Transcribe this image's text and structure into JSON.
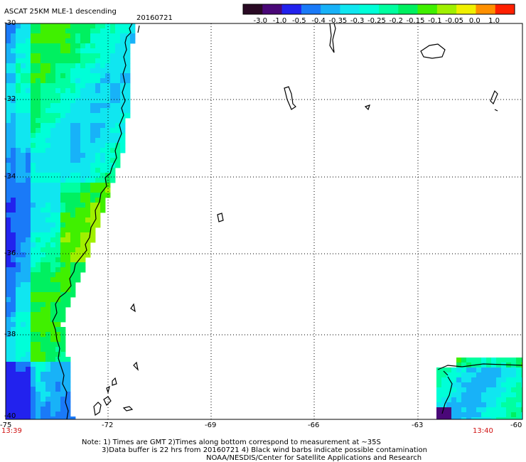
{
  "header": {
    "title": "ASCAT 25KM MLE-1 descending",
    "date": "20160721"
  },
  "colorbar": {
    "ticks": [
      "-3.0",
      "-1.0",
      "-0.5",
      "-0.4",
      "-0.35",
      "-0.3",
      "-0.25",
      "-0.2",
      "-0.15",
      "-0.1",
      "-0.05",
      "0.0",
      "1.0"
    ],
    "colors": [
      "#2a0a24",
      "#4a0878",
      "#2222ee",
      "#1a7af8",
      "#18b2f8",
      "#10e6f0",
      "#00ffd8",
      "#00ffa0",
      "#00f060",
      "#40f000",
      "#a0f000",
      "#f0f000",
      "#ff9000",
      "#ff2000"
    ]
  },
  "axes": {
    "x_ticks": [
      "-75",
      "-72",
      "-69",
      "-66",
      "-63",
      "-60"
    ],
    "y_ticks": [
      "-30",
      "-32",
      "-34",
      "-36",
      "-38",
      "-40"
    ],
    "lon_range": [
      -75,
      -60
    ],
    "lat_range": [
      -40,
      -30
    ]
  },
  "pass_times": {
    "left": "13:39",
    "right": "13:40"
  },
  "notes": {
    "line1": "Note: 1) Times are GMT 2)Times along bottom correspond to measurement at ~35S",
    "line2": "3)Data buffer is 22 hrs from 20160721 4) Black wind barbs indicate possible contamination",
    "line3": "NOAA/NESDIS/Center for Satellite Applications and Research"
  }
}
